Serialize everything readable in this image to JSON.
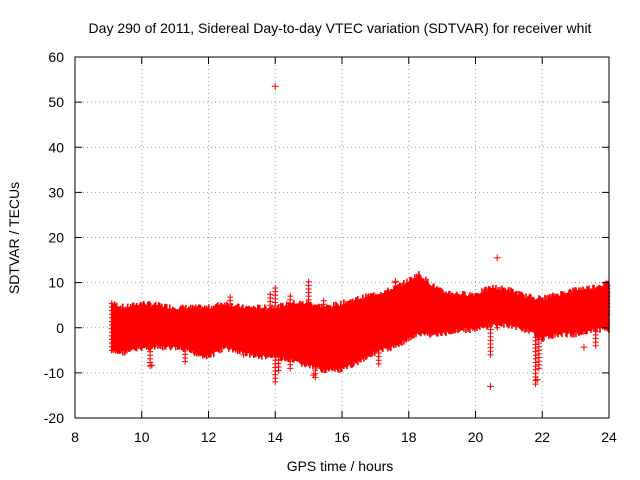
{
  "chart_data": {
    "type": "scatter",
    "title": "Day 290 of 2011, Sidereal Day-to-day VTEC variation (SDTVAR) for receiver whit",
    "xlabel": "GPS time / hours",
    "ylabel": "SDTVAR / TECUs",
    "xlim": [
      8,
      24
    ],
    "ylim": [
      -20,
      60
    ],
    "xticks": [
      8,
      10,
      12,
      14,
      16,
      18,
      20,
      22,
      24
    ],
    "yticks": [
      -20,
      -10,
      0,
      10,
      20,
      30,
      40,
      50,
      60
    ],
    "xtick_labels": [
      "8",
      "10",
      "12",
      "14",
      "16",
      "18",
      "20",
      "22",
      "24"
    ],
    "ytick_labels": [
      "-20",
      "-10",
      "0",
      "10",
      "20",
      "30",
      "40",
      "50",
      "60"
    ],
    "grid": true,
    "marker": "+",
    "color": "#ff0000",
    "series": [
      {
        "name": "SDTVAR",
        "band": [
          {
            "x": 9.1,
            "lo": -5,
            "hi": 5
          },
          {
            "x": 9.5,
            "lo": -5,
            "hi": 4
          },
          {
            "x": 10.0,
            "lo": -4,
            "hi": 5
          },
          {
            "x": 10.5,
            "lo": -4,
            "hi": 4.5
          },
          {
            "x": 11.0,
            "lo": -4,
            "hi": 4
          },
          {
            "x": 11.5,
            "lo": -5,
            "hi": 4
          },
          {
            "x": 12.0,
            "lo": -6,
            "hi": 4
          },
          {
            "x": 12.5,
            "lo": -4,
            "hi": 5
          },
          {
            "x": 13.0,
            "lo": -5,
            "hi": 4
          },
          {
            "x": 13.5,
            "lo": -6,
            "hi": 4
          },
          {
            "x": 14.0,
            "lo": -6,
            "hi": 4
          },
          {
            "x": 14.5,
            "lo": -7,
            "hi": 5
          },
          {
            "x": 15.0,
            "lo": -8,
            "hi": 5
          },
          {
            "x": 15.5,
            "lo": -9,
            "hi": 4
          },
          {
            "x": 16.0,
            "lo": -9,
            "hi": 5
          },
          {
            "x": 16.5,
            "lo": -7,
            "hi": 6
          },
          {
            "x": 17.0,
            "lo": -5,
            "hi": 7
          },
          {
            "x": 17.5,
            "lo": -4,
            "hi": 8
          },
          {
            "x": 18.0,
            "lo": -2,
            "hi": 10
          },
          {
            "x": 18.3,
            "lo": -1,
            "hi": 11.5
          },
          {
            "x": 18.7,
            "lo": -1,
            "hi": 9
          },
          {
            "x": 19.0,
            "lo": -1,
            "hi": 7.5
          },
          {
            "x": 19.5,
            "lo": 0,
            "hi": 7
          },
          {
            "x": 20.0,
            "lo": 0,
            "hi": 7
          },
          {
            "x": 20.5,
            "lo": 1,
            "hi": 8.5
          },
          {
            "x": 21.0,
            "lo": 1,
            "hi": 8
          },
          {
            "x": 21.5,
            "lo": 0,
            "hi": 6.5
          },
          {
            "x": 22.0,
            "lo": -2,
            "hi": 6
          },
          {
            "x": 22.5,
            "lo": -1,
            "hi": 7
          },
          {
            "x": 23.0,
            "lo": -1,
            "hi": 8
          },
          {
            "x": 23.5,
            "lo": 0,
            "hi": 8.5
          },
          {
            "x": 24.0,
            "lo": 0,
            "hi": 9.5
          }
        ],
        "spikes": [
          {
            "x": 9.1,
            "lo": -5,
            "hi": 5.5
          },
          {
            "x": 10.25,
            "lo": -8.5,
            "hi": 2
          },
          {
            "x": 11.3,
            "lo": -7.5,
            "hi": 1
          },
          {
            "x": 12.35,
            "lo": 1,
            "hi": 5.5
          },
          {
            "x": 12.65,
            "lo": 2,
            "hi": 7
          },
          {
            "x": 13.05,
            "lo": -6,
            "hi": 0
          },
          {
            "x": 13.85,
            "lo": 1,
            "hi": 7.5
          },
          {
            "x": 14.0,
            "lo": -12,
            "hi": 9
          },
          {
            "x": 14.1,
            "lo": -9.5,
            "hi": 4
          },
          {
            "x": 14.45,
            "lo": -9,
            "hi": 7
          },
          {
            "x": 15.0,
            "lo": 3,
            "hi": 11
          },
          {
            "x": 15.2,
            "lo": -11,
            "hi": 2
          },
          {
            "x": 15.45,
            "lo": 2,
            "hi": 6
          },
          {
            "x": 17.1,
            "lo": -8,
            "hi": -2
          },
          {
            "x": 17.6,
            "lo": 6,
            "hi": 10.5
          },
          {
            "x": 20.45,
            "lo": -6,
            "hi": 2
          },
          {
            "x": 20.65,
            "lo": 0,
            "hi": 4.5
          },
          {
            "x": 21.8,
            "lo": -12.5,
            "hi": -2
          },
          {
            "x": 21.9,
            "lo": -9,
            "hi": 2
          },
          {
            "x": 23.6,
            "lo": -4,
            "hi": 2
          },
          {
            "x": 23.95,
            "lo": 3,
            "hi": 9.5
          }
        ],
        "outliers": [
          {
            "x": 14.0,
            "y": 53.5
          },
          {
            "x": 20.65,
            "y": 15.5
          },
          {
            "x": 17.6,
            "y": 10.3
          },
          {
            "x": 20.45,
            "y": -13
          },
          {
            "x": 23.25,
            "y": -4.3
          },
          {
            "x": 21.85,
            "y": -11.5
          },
          {
            "x": 15.15,
            "y": -10.5
          },
          {
            "x": 10.3,
            "y": -8.3
          }
        ]
      }
    ]
  }
}
